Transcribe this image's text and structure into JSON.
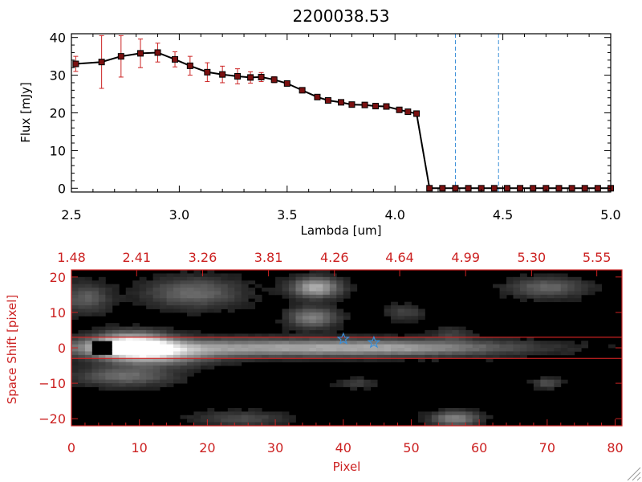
{
  "colors": {
    "axis_red": "#cc2222",
    "data_line": "#000000",
    "marker_fill": "#7a1010",
    "error_bar": "#cc2222",
    "vline": "#3a8fd8",
    "star": "#3a8fd8"
  },
  "chart_data": [
    {
      "type": "line",
      "title": "2200038.53",
      "xlabel": "Lambda [um]",
      "ylabel": "Flux [mJy]",
      "xlim": [
        2.5,
        5.0
      ],
      "ylim": [
        -1,
        41
      ],
      "xticks": [
        2.5,
        3.0,
        3.5,
        4.0,
        4.5,
        5.0
      ],
      "xtick_labels": [
        "2.5",
        "3.0",
        "3.5",
        "4.0",
        "4.5",
        "5.0"
      ],
      "yticks": [
        0,
        10,
        20,
        30,
        40
      ],
      "ytick_labels": [
        "0",
        "10",
        "20",
        "30",
        "40"
      ],
      "series": [
        {
          "name": "flux",
          "x": [
            2.52,
            2.64,
            2.73,
            2.82,
            2.9,
            2.98,
            3.05,
            3.13,
            3.2,
            3.27,
            3.33,
            3.38,
            3.44,
            3.5,
            3.57,
            3.64,
            3.69,
            3.75,
            3.8,
            3.86,
            3.91,
            3.96,
            4.02,
            4.06,
            4.1,
            4.16,
            4.22,
            4.28,
            4.34,
            4.4,
            4.46,
            4.52,
            4.58,
            4.64,
            4.7,
            4.76,
            4.82,
            4.88,
            4.94,
            5.0
          ],
          "y": [
            33.0,
            33.5,
            35.0,
            35.8,
            36.0,
            34.2,
            32.5,
            30.8,
            30.2,
            29.7,
            29.4,
            29.5,
            28.8,
            27.8,
            26.0,
            24.2,
            23.3,
            22.8,
            22.2,
            22.1,
            21.8,
            21.7,
            20.8,
            20.3,
            19.8,
            0,
            0,
            0,
            0,
            0,
            0,
            0,
            0,
            0,
            0,
            0,
            0,
            0,
            0,
            0
          ],
          "yerr": [
            2.0,
            7.0,
            5.5,
            3.8,
            2.5,
            2.0,
            2.5,
            2.5,
            2.2,
            2.0,
            1.5,
            1.2,
            0.8,
            0.6,
            0.5,
            0.5,
            0.4,
            0.4,
            0.4,
            0.4,
            0.4,
            0.4,
            0.4,
            0.4,
            0.4,
            0,
            0,
            0,
            0,
            0,
            0,
            0,
            0,
            0,
            0,
            0,
            0,
            0,
            0,
            0
          ]
        }
      ],
      "vlines": [
        4.28,
        4.48
      ]
    },
    {
      "type": "heatmap",
      "xlabel": "Pixel",
      "ylabel": "Space Shift [pixel]",
      "xlim": [
        0,
        81
      ],
      "ylim": [
        -22,
        22
      ],
      "xticks": [
        0,
        10,
        20,
        30,
        40,
        50,
        60,
        70,
        80
      ],
      "xtick_labels": [
        "0",
        "10",
        "20",
        "30",
        "40",
        "50",
        "60",
        "70",
        "80"
      ],
      "yticks": [
        -20,
        -10,
        0,
        10,
        20
      ],
      "ytick_labels": [
        "−20",
        "−10",
        "0",
        "10",
        "20"
      ],
      "top_axis_tick_positions": [
        0,
        9.6,
        19.3,
        29,
        38.7,
        48.3,
        58,
        67.7,
        77.3
      ],
      "top_axis_labels": [
        "1.48",
        "2.41",
        "3.26",
        "3.81",
        "4.26",
        "4.64",
        "4.99",
        "5.30",
        "5.55"
      ],
      "hlines": [
        3,
        -3
      ],
      "stars": [
        [
          40,
          2.5
        ],
        [
          44.5,
          1.5
        ]
      ],
      "blobs": [
        {
          "x": 9,
          "y": 0.5,
          "sx": 4,
          "sy": 2.5,
          "v": 1.0
        },
        {
          "x": 25,
          "y": 0,
          "sx": 22,
          "sy": 1.8,
          "v": 0.52
        },
        {
          "x": 50,
          "y": 0,
          "sx": 12,
          "sy": 1.5,
          "v": 0.28
        },
        {
          "x": 14,
          "y": -2.5,
          "sx": 5,
          "sy": 2,
          "v": 0.35
        },
        {
          "x": 8,
          "y": -8,
          "sx": 5,
          "sy": 2,
          "v": 0.35
        },
        {
          "x": 36,
          "y": 17,
          "sx": 2.5,
          "sy": 2,
          "v": 0.62
        },
        {
          "x": 35.5,
          "y": 8.5,
          "sx": 2.5,
          "sy": 2,
          "v": 0.45
        },
        {
          "x": 18,
          "y": 15.5,
          "sx": 5,
          "sy": 3,
          "v": 0.35
        },
        {
          "x": 2,
          "y": 14,
          "sx": 2.5,
          "sy": 3,
          "v": 0.3
        },
        {
          "x": 70,
          "y": 17,
          "sx": 4,
          "sy": 2,
          "v": 0.33
        },
        {
          "x": 56.5,
          "y": -20,
          "sx": 2.5,
          "sy": 1.5,
          "v": 0.45
        },
        {
          "x": 25,
          "y": -20,
          "sx": 5,
          "sy": 1.5,
          "v": 0.22
        },
        {
          "x": 49,
          "y": 10,
          "sx": 2,
          "sy": 1.5,
          "v": 0.2
        },
        {
          "x": 70,
          "y": -10,
          "sx": 1.5,
          "sy": 1,
          "v": 0.25
        },
        {
          "x": 42,
          "y": -10,
          "sx": 2,
          "sy": 1,
          "v": 0.18
        },
        {
          "x": 56,
          "y": 4,
          "sx": 2,
          "sy": 1.5,
          "v": 0.15
        }
      ],
      "dark_patch": {
        "x": [
          3,
          6
        ],
        "y": [
          -1.5,
          1.5
        ]
      }
    }
  ]
}
